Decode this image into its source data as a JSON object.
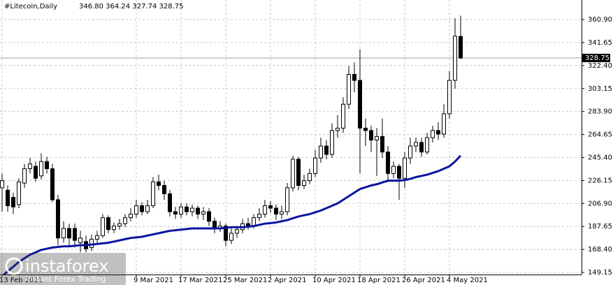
{
  "chart_data": {
    "type": "candlestick",
    "title": "#Litecoin,Daily",
    "ohlc_text": "346.80 364.24 327.74 328.75",
    "watermark": {
      "brand": "instaforex",
      "tagline": "Instant Forex Trading"
    },
    "categories": [
      "13 Feb 2021",
      null,
      null,
      null,
      null,
      null,
      null,
      null,
      null,
      null,
      null,
      null,
      null,
      null,
      null,
      null,
      null,
      null,
      null,
      null,
      null,
      null,
      null,
      null,
      "9 Mar 2021",
      null,
      null,
      null,
      null,
      null,
      null,
      null,
      "17 Mar 2021",
      null,
      null,
      null,
      null,
      null,
      null,
      null,
      "25 Mar 2021",
      null,
      null,
      null,
      null,
      null,
      null,
      null,
      "2 Apr 2021",
      null,
      null,
      null,
      null,
      null,
      null,
      null,
      "10 Apr 2021",
      null,
      null,
      null,
      null,
      null,
      null,
      null,
      "18 Apr 2021",
      null,
      null,
      null,
      null,
      null,
      null,
      null,
      "26 Apr 2021",
      null,
      null,
      null,
      null,
      null,
      null,
      null,
      "4 May 2021",
      null,
      null
    ],
    "open": [
      220,
      218,
      212,
      206,
      224,
      236,
      238,
      230,
      242,
      236,
      210,
      178,
      186,
      186,
      174,
      175,
      170,
      177,
      180,
      195,
      185,
      188,
      190,
      195,
      198,
      205,
      200,
      205,
      225,
      222,
      215,
      200,
      198,
      204,
      200,
      203,
      198,
      200,
      192,
      186,
      188,
      176,
      182,
      185,
      190,
      188,
      195,
      198,
      205,
      203,
      198,
      200,
      220,
      244,
      222,
      226,
      232,
      245,
      255,
      248,
      268,
      270,
      290,
      315,
      310,
      270,
      268,
      260,
      263,
      250,
      232,
      238,
      228,
      245,
      255,
      258,
      250,
      262,
      268,
      265,
      282,
      310,
      346.8
    ],
    "high": [
      232,
      222,
      216,
      228,
      240,
      245,
      242,
      249,
      246,
      240,
      214,
      192,
      190,
      190,
      184,
      180,
      181,
      184,
      198,
      197,
      191,
      194,
      198,
      203,
      210,
      208,
      210,
      229,
      231,
      226,
      218,
      204,
      207,
      207,
      206,
      205,
      204,
      203,
      195,
      192,
      190,
      186,
      188,
      194,
      195,
      198,
      203,
      210,
      209,
      206,
      205,
      224,
      247,
      246,
      231,
      236,
      252,
      262,
      260,
      274,
      281,
      296,
      322,
      325,
      336,
      278,
      272,
      270,
      278,
      255,
      242,
      240,
      250,
      262,
      262,
      262,
      266,
      272,
      275,
      290,
      318,
      362,
      364.24
    ],
    "low": [
      200,
      200,
      198,
      203,
      220,
      232,
      225,
      227,
      232,
      208,
      172,
      174,
      172,
      170,
      166,
      166,
      167,
      174,
      178,
      182,
      182,
      185,
      187,
      192,
      195,
      197,
      198,
      203,
      218,
      210,
      196,
      194,
      195,
      197,
      196,
      194,
      193,
      188,
      182,
      183,
      171,
      173,
      178,
      182,
      185,
      186,
      192,
      195,
      199,
      193,
      194,
      197,
      217,
      218,
      219,
      223,
      229,
      241,
      244,
      245,
      262,
      266,
      286,
      300,
      232,
      255,
      250,
      230,
      245,
      225,
      228,
      210,
      220,
      240,
      250,
      246,
      248,
      258,
      260,
      262,
      278,
      303,
      327.74
    ],
    "close": [
      226,
      205,
      204,
      225,
      236,
      240,
      228,
      242,
      236,
      210,
      178,
      186,
      178,
      176,
      178,
      169,
      177,
      180,
      195,
      185,
      188,
      190,
      195,
      198,
      205,
      200,
      205,
      225,
      222,
      215,
      200,
      198,
      204,
      200,
      203,
      198,
      200,
      192,
      186,
      188,
      176,
      182,
      185,
      190,
      188,
      195,
      198,
      205,
      203,
      198,
      200,
      220,
      244,
      222,
      226,
      232,
      245,
      255,
      248,
      268,
      270,
      290,
      315,
      310,
      270,
      268,
      260,
      263,
      250,
      232,
      238,
      228,
      245,
      255,
      258,
      250,
      262,
      268,
      265,
      282,
      310,
      347,
      328.75
    ],
    "ma_color": "#0c14a0",
    "ma_values": [
      146,
      150,
      154,
      158,
      161,
      164,
      166,
      168,
      169,
      170,
      170.5,
      171,
      171,
      171.5,
      172,
      172,
      172.5,
      173,
      173.5,
      174,
      175,
      176,
      177,
      178,
      178.5,
      179,
      180,
      181,
      182,
      183,
      184,
      184.5,
      185,
      185.5,
      186,
      186,
      186,
      186,
      186,
      186,
      186.5,
      187,
      187,
      187,
      187.5,
      188,
      189,
      190,
      190.5,
      191,
      192,
      193,
      194.5,
      196,
      197,
      198,
      199.5,
      201,
      203,
      205,
      207,
      210,
      213,
      216,
      219,
      220.5,
      222,
      223,
      224.5,
      226,
      226,
      226,
      226.5,
      227.5,
      229,
      230,
      231,
      232.5,
      234,
      236,
      238,
      242,
      247
    ],
    "up_color": "#ffffff",
    "down_color": "#000000",
    "ylim": [
      147.4,
      377.3
    ],
    "yticks": [
      {
        "value": 149.15,
        "label": "149.15"
      },
      {
        "value": 168.4,
        "label": "168.40"
      },
      {
        "value": 187.65,
        "label": "187.65"
      },
      {
        "value": 206.9,
        "label": "206.90"
      },
      {
        "value": 226.15,
        "label": "226.15"
      },
      {
        "value": 245.4,
        "label": "245.40"
      },
      {
        "value": 264.65,
        "label": "264.65"
      },
      {
        "value": 283.9,
        "label": "283.90"
      },
      {
        "value": 303.15,
        "label": "303.15"
      },
      {
        "value": 322.4,
        "label": "322.40"
      },
      {
        "value": 341.65,
        "label": "341.65"
      },
      {
        "value": 360.9,
        "label": "360.90"
      }
    ],
    "grid": true
  }
}
